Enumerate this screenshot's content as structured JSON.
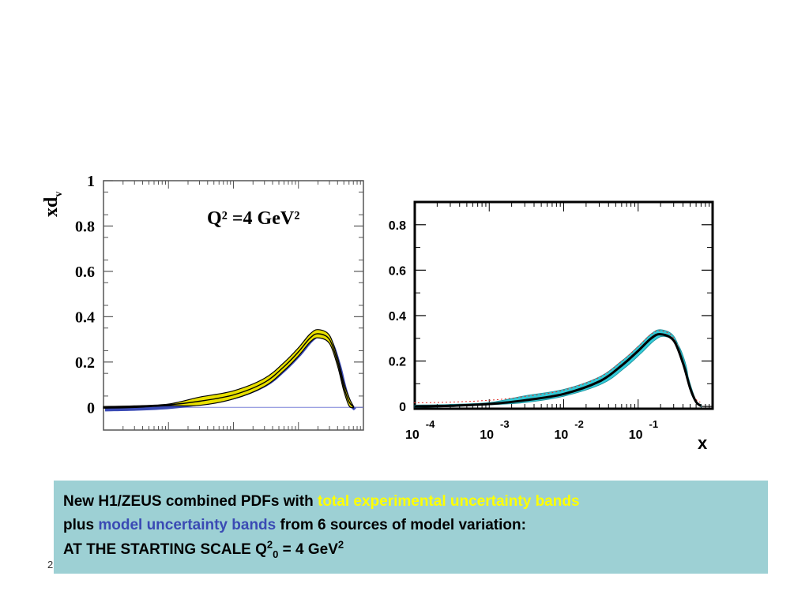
{
  "page_number": "2",
  "caption": {
    "line1_prefix": "New H1/ZEUS combined PDFs with ",
    "line1_highlight": "total experimental uncertainty bands",
    "line2_prefix": "plus ",
    "line2_highlight": "model uncertainty bands",
    "line2_suffix": " from 6 sources of model variation:",
    "line3_prefix": "AT THE STARTING SCALE Q",
    "line3_sup": "2",
    "line3_sub": "0",
    "line3_mid": " = 4 GeV",
    "line3_sup2": "2",
    "colors": {
      "experimental": "#ffff00",
      "model": "#3a4ab4",
      "box": "#9dd0d4"
    }
  },
  "chart_data": [
    {
      "type": "line",
      "ylabel": "xd",
      "ylabel_sub": "v",
      "annotation": "Q² =4 GeV²",
      "x_scale": "log",
      "xlim": [
        0.0001,
        1
      ],
      "ylim": [
        -0.1,
        1
      ],
      "yticks": [
        "0",
        "0.2",
        "0.4",
        "0.6",
        "0.8",
        "1"
      ],
      "x": [
        0.0001,
        0.0003,
        0.001,
        0.003,
        0.01,
        0.03,
        0.06,
        0.1,
        0.15,
        0.2,
        0.3,
        0.4,
        0.5,
        0.6,
        0.7
      ],
      "series": [
        {
          "values": [
            0.0,
            0.003,
            0.011,
            0.027,
            0.055,
            0.11,
            0.18,
            0.245,
            0.305,
            0.325,
            0.3,
            0.2,
            0.09,
            0.025,
            0.002
          ],
          "band_width": 0.018
        }
      ],
      "band_colors": {
        "experimental": "#e8e000",
        "model": "#3a4ab4",
        "line": "#000000"
      },
      "grid": false
    },
    {
      "type": "line",
      "xlabel": "x",
      "x_scale": "log",
      "xlim": [
        0.0001,
        1
      ],
      "ylim": [
        -0.01,
        0.9
      ],
      "yticks": [
        "0",
        "0.2",
        "0.4",
        "0.6",
        "0.8"
      ],
      "xticks": [
        {
          "base": "10",
          "exp": "-4"
        },
        {
          "base": "10",
          "exp": "-3"
        },
        {
          "base": "10",
          "exp": "-2"
        },
        {
          "base": "10",
          "exp": "-1"
        }
      ],
      "x": [
        0.0001,
        0.0003,
        0.001,
        0.003,
        0.01,
        0.03,
        0.06,
        0.1,
        0.15,
        0.2,
        0.3,
        0.4,
        0.5,
        0.6,
        0.7
      ],
      "series": [
        {
          "values": [
            0.0,
            0.003,
            0.011,
            0.027,
            0.055,
            0.11,
            0.18,
            0.245,
            0.3,
            0.318,
            0.29,
            0.19,
            0.08,
            0.02,
            0.002
          ],
          "band_width": 0.02
        }
      ],
      "band_colors": {
        "band": "#33c9d6",
        "red_edge": "#e0302a",
        "line": "#000000"
      },
      "grid": false
    }
  ]
}
